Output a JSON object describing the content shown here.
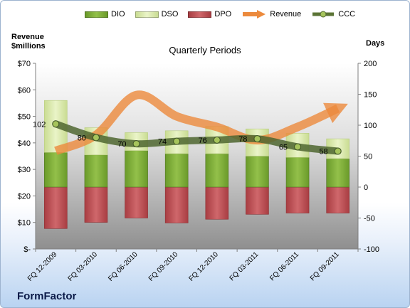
{
  "chart_data": {
    "type": "bar",
    "title": "Quarterly Periods",
    "left_axis_label_line1": "Revenue",
    "left_axis_label_line2": "$millions",
    "right_axis_label": "Days",
    "company": "FormFactor",
    "categories": [
      "FQ 12-2009",
      "FQ 03-2010",
      "FQ 06-2010",
      "FQ 09-2010",
      "FQ 12-2010",
      "FQ 03-2011",
      "FQ 06-2011",
      "FQ 09-2011"
    ],
    "left_axis": {
      "ylim": [
        0,
        70
      ],
      "ticks": [
        "$-",
        "$10",
        "$20",
        "$30",
        "$40",
        "$50",
        "$60",
        "$70"
      ]
    },
    "right_axis": {
      "ylim": [
        -100,
        200
      ],
      "ticks": [
        "-100",
        "-50",
        "0",
        "50",
        "100",
        "150",
        "200"
      ]
    },
    "series": [
      {
        "name": "DIO",
        "unit": "days",
        "values": [
          56,
          52,
          59,
          54,
          54,
          50,
          48,
          46
        ],
        "color": "#7da836"
      },
      {
        "name": "DSO",
        "unit": "days",
        "values": [
          84,
          44,
          29,
          37,
          44,
          44,
          39,
          32
        ],
        "color": "#d9eab0"
      },
      {
        "name": "DPO",
        "unit": "days",
        "values": [
          -67,
          -57,
          -50,
          -58,
          -52,
          -44,
          -42,
          -42
        ],
        "color": "#c25257"
      },
      {
        "name": "Revenue",
        "unit": "$ millions",
        "values": [
          37,
          43,
          58,
          50,
          46,
          41,
          46,
          53
        ],
        "color": "#ec8a3c"
      },
      {
        "name": "CCC",
        "unit": "days",
        "values": [
          102,
          80,
          70,
          74,
          76,
          78,
          65,
          58
        ],
        "color": "#5b7436"
      }
    ],
    "legend": [
      "DIO",
      "DSO",
      "DPO",
      "Revenue",
      "CCC"
    ],
    "legend_position": "top",
    "grid": false
  }
}
